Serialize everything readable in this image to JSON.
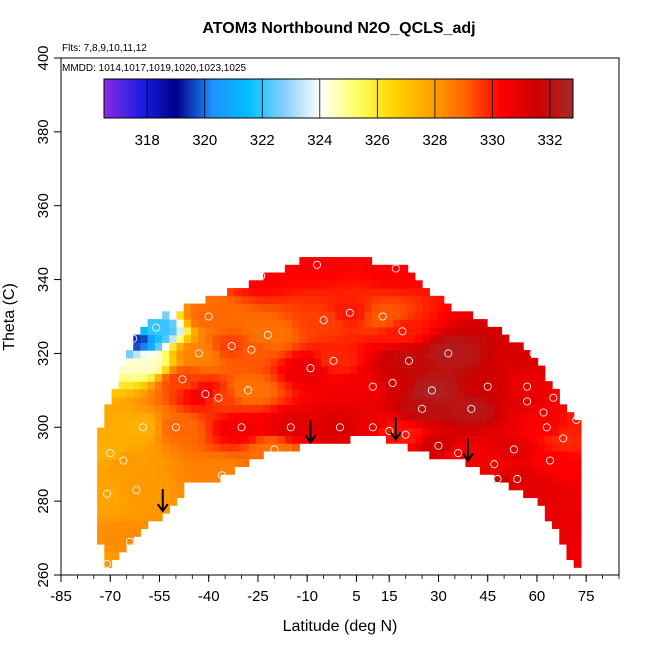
{
  "chart_data": {
    "type": "heatmap",
    "title": "ATOM3 Northbound N2O_QCLS_adj",
    "subtitle_flights": "Flts: 7,8,9,10,11,12",
    "subtitle_dates": "MMDD: 1014,1017,1019,1020,1023,1025",
    "xlabel": "Latitude (deg N)",
    "ylabel": "Theta (C)",
    "xlim": [
      -85,
      85
    ],
    "ylim": [
      260,
      400
    ],
    "x_ticks": [
      -85,
      -70,
      -55,
      -40,
      -25,
      -10,
      5,
      15,
      30,
      45,
      60,
      75
    ],
    "y_ticks": [
      260,
      280,
      300,
      320,
      340,
      360,
      380,
      400
    ],
    "colorbar": {
      "min": 316.5,
      "max": 332.8,
      "ticks": [
        318,
        320,
        322,
        324,
        326,
        328,
        330,
        332
      ],
      "colors": [
        "#8a2be2",
        "#1e1ee6",
        "#00008b",
        "#1e90ff",
        "#00bfff",
        "#87cefa",
        "#ffffff",
        "#ffff66",
        "#ffd700",
        "#ffa500",
        "#ff6600",
        "#ff0000",
        "#cc0000",
        "#a52a2a"
      ]
    },
    "arrows_latitude": [
      -54,
      -9,
      17,
      39
    ],
    "boundary": {
      "upper": [
        [
          -74,
          275
        ],
        [
          -73,
          300
        ],
        [
          -71,
          305
        ],
        [
          -68,
          312
        ],
        [
          -65,
          320
        ],
        [
          -62,
          326
        ],
        [
          -58,
          329
        ],
        [
          -52,
          331
        ],
        [
          -45,
          334
        ],
        [
          -38,
          335
        ],
        [
          -30,
          338
        ],
        [
          -22,
          341
        ],
        [
          -15,
          344
        ],
        [
          -8,
          346
        ],
        [
          0,
          346
        ],
        [
          10,
          345
        ],
        [
          20,
          343
        ],
        [
          25,
          338
        ],
        [
          33,
          333
        ],
        [
          42,
          330
        ],
        [
          50,
          326
        ],
        [
          57,
          320
        ],
        [
          62,
          315
        ],
        [
          66,
          309
        ],
        [
          70,
          305
        ],
        [
          73,
          302
        ]
      ],
      "lower": [
        [
          73,
          260
        ],
        [
          70,
          265
        ],
        [
          65,
          273
        ],
        [
          60,
          280
        ],
        [
          50,
          285
        ],
        [
          40,
          290
        ],
        [
          30,
          292
        ],
        [
          20,
          295
        ],
        [
          10,
          298
        ],
        [
          0,
          296
        ],
        [
          -10,
          295
        ],
        [
          -20,
          294
        ],
        [
          -30,
          290
        ],
        [
          -38,
          286
        ],
        [
          -45,
          286
        ],
        [
          -52,
          278
        ],
        [
          -60,
          272
        ],
        [
          -68,
          265
        ],
        [
          -72,
          262
        ]
      ]
    },
    "samples": [
      {
        "lat": -71,
        "theta": 263,
        "n2o": 328.0
      },
      {
        "lat": -71,
        "theta": 282,
        "n2o": 327.8
      },
      {
        "lat": -70,
        "theta": 293,
        "n2o": 327.5
      },
      {
        "lat": -66,
        "theta": 291,
        "n2o": 328.0
      },
      {
        "lat": -64,
        "theta": 269,
        "n2o": 328.3
      },
      {
        "lat": -62,
        "theta": 283,
        "n2o": 328.0
      },
      {
        "lat": -60,
        "theta": 300,
        "n2o": 327.5
      },
      {
        "lat": -59,
        "theta": 317,
        "n2o": 324.5
      },
      {
        "lat": -63,
        "theta": 324,
        "n2o": 319.5
      },
      {
        "lat": -56,
        "theta": 327,
        "n2o": 322.0
      },
      {
        "lat": -48,
        "theta": 313,
        "n2o": 329.5
      },
      {
        "lat": -43,
        "theta": 320,
        "n2o": 328.5
      },
      {
        "lat": -41,
        "theta": 309,
        "n2o": 330.5
      },
      {
        "lat": -40,
        "theta": 330,
        "n2o": 329.0
      },
      {
        "lat": -37,
        "theta": 308,
        "n2o": 329.5
      },
      {
        "lat": -36,
        "theta": 287,
        "n2o": 328.5
      },
      {
        "lat": -33,
        "theta": 322,
        "n2o": 329.5
      },
      {
        "lat": -28,
        "theta": 310,
        "n2o": 328.8
      },
      {
        "lat": -27,
        "theta": 321,
        "n2o": 329.2
      },
      {
        "lat": -22,
        "theta": 325,
        "n2o": 328.8
      },
      {
        "lat": -20,
        "theta": 294,
        "n2o": 328.8
      },
      {
        "lat": -24,
        "theta": 341,
        "n2o": 330.3
      },
      {
        "lat": -9,
        "theta": 316,
        "n2o": 330.8
      },
      {
        "lat": -5,
        "theta": 329,
        "n2o": 329.5
      },
      {
        "lat": -7,
        "theta": 344,
        "n2o": 330.3
      },
      {
        "lat": -2,
        "theta": 318,
        "n2o": 329.8
      },
      {
        "lat": 3,
        "theta": 331,
        "n2o": 330.0
      },
      {
        "lat": 10,
        "theta": 300,
        "n2o": 330.8
      },
      {
        "lat": 10,
        "theta": 311,
        "n2o": 330.5
      },
      {
        "lat": 13,
        "theta": 330,
        "n2o": 329.2
      },
      {
        "lat": 15,
        "theta": 299,
        "n2o": 330.0
      },
      {
        "lat": 16,
        "theta": 312,
        "n2o": 331.5
      },
      {
        "lat": 17,
        "theta": 343,
        "n2o": 330.3
      },
      {
        "lat": 19,
        "theta": 326,
        "n2o": 330.0
      },
      {
        "lat": 20,
        "theta": 298,
        "n2o": 330.0
      },
      {
        "lat": 21,
        "theta": 318,
        "n2o": 331.8
      },
      {
        "lat": 30,
        "theta": 295,
        "n2o": 331.5
      },
      {
        "lat": 36,
        "theta": 293,
        "n2o": 330.5
      },
      {
        "lat": 40,
        "theta": 305,
        "n2o": 332.2
      },
      {
        "lat": 45,
        "theta": 311,
        "n2o": 331.5
      },
      {
        "lat": 47,
        "theta": 290,
        "n2o": 330.5
      },
      {
        "lat": 48,
        "theta": 286,
        "n2o": 331.5
      },
      {
        "lat": 53,
        "theta": 294,
        "n2o": 331.0
      },
      {
        "lat": 54,
        "theta": 286,
        "n2o": 331.0
      },
      {
        "lat": 57,
        "theta": 311,
        "n2o": 330.8
      },
      {
        "lat": 57,
        "theta": 307,
        "n2o": 331.0
      },
      {
        "lat": 59,
        "theta": 320,
        "n2o": 331.2
      },
      {
        "lat": 62,
        "theta": 304,
        "n2o": 330.5
      },
      {
        "lat": 63,
        "theta": 300,
        "n2o": 330.3
      },
      {
        "lat": 64,
        "theta": 291,
        "n2o": 330.3
      },
      {
        "lat": 65,
        "theta": 308,
        "n2o": 330.5
      },
      {
        "lat": 68,
        "theta": 297,
        "n2o": 329.8
      },
      {
        "lat": 72,
        "theta": 302,
        "n2o": 330.0
      },
      {
        "lat": -50,
        "theta": 300,
        "n2o": 329.0
      },
      {
        "lat": -30,
        "theta": 300,
        "n2o": 330.5
      },
      {
        "lat": -15,
        "theta": 300,
        "n2o": 331.0
      },
      {
        "lat": 0,
        "theta": 300,
        "n2o": 331.2
      },
      {
        "lat": 28,
        "theta": 310,
        "n2o": 332.5
      },
      {
        "lat": 33,
        "theta": 320,
        "n2o": 332.3
      },
      {
        "lat": 25,
        "theta": 305,
        "n2o": 332.0
      }
    ]
  }
}
